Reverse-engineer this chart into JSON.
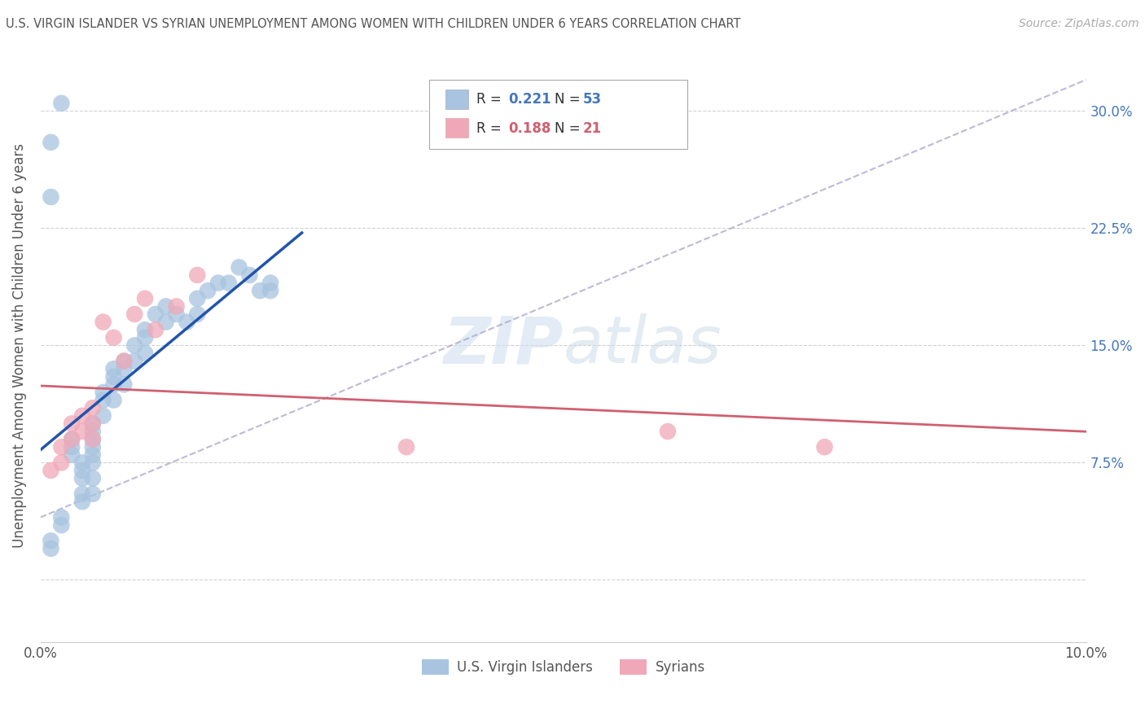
{
  "title": "U.S. VIRGIN ISLANDER VS SYRIAN UNEMPLOYMENT AMONG WOMEN WITH CHILDREN UNDER 6 YEARS CORRELATION CHART",
  "source": "Source: ZipAtlas.com",
  "ylabel": "Unemployment Among Women with Children Under 6 years",
  "xlim": [
    0.0,
    0.1
  ],
  "ylim": [
    -0.04,
    0.34
  ],
  "yticks": [
    0.0,
    0.075,
    0.15,
    0.225,
    0.3
  ],
  "ytick_labels": [
    "",
    "7.5%",
    "15.0%",
    "22.5%",
    "30.0%"
  ],
  "xticks": [
    0.0,
    0.025,
    0.05,
    0.075,
    0.1
  ],
  "xtick_labels": [
    "0.0%",
    "",
    "",
    "",
    "10.0%"
  ],
  "legend_label1": "U.S. Virgin Islanders",
  "legend_label2": "Syrians",
  "R1": 0.221,
  "N1": 53,
  "R2": 0.188,
  "N2": 21,
  "color_blue": "#a8c4e0",
  "color_pink": "#f0a8b8",
  "color_blue_line": "#2255aa",
  "color_pink_line": "#d06070",
  "color_dashed": "#aaaacc",
  "blue_points_x": [
    0.001,
    0.001,
    0.002,
    0.002,
    0.003,
    0.003,
    0.003,
    0.004,
    0.004,
    0.004,
    0.004,
    0.004,
    0.005,
    0.005,
    0.005,
    0.005,
    0.005,
    0.005,
    0.005,
    0.005,
    0.006,
    0.006,
    0.006,
    0.007,
    0.007,
    0.007,
    0.007,
    0.008,
    0.008,
    0.008,
    0.009,
    0.009,
    0.01,
    0.01,
    0.01,
    0.011,
    0.012,
    0.012,
    0.013,
    0.014,
    0.015,
    0.015,
    0.016,
    0.017,
    0.018,
    0.019,
    0.02,
    0.021,
    0.022,
    0.022,
    0.001,
    0.001,
    0.002
  ],
  "blue_points_y": [
    0.025,
    0.02,
    0.04,
    0.035,
    0.09,
    0.085,
    0.08,
    0.075,
    0.07,
    0.065,
    0.055,
    0.05,
    0.1,
    0.095,
    0.09,
    0.085,
    0.08,
    0.075,
    0.065,
    0.055,
    0.12,
    0.115,
    0.105,
    0.135,
    0.13,
    0.125,
    0.115,
    0.14,
    0.135,
    0.125,
    0.15,
    0.14,
    0.16,
    0.155,
    0.145,
    0.17,
    0.175,
    0.165,
    0.17,
    0.165,
    0.18,
    0.17,
    0.185,
    0.19,
    0.19,
    0.2,
    0.195,
    0.185,
    0.19,
    0.185,
    0.245,
    0.28,
    0.305
  ],
  "pink_points_x": [
    0.001,
    0.002,
    0.002,
    0.003,
    0.003,
    0.004,
    0.004,
    0.005,
    0.005,
    0.005,
    0.006,
    0.007,
    0.008,
    0.009,
    0.01,
    0.011,
    0.013,
    0.015,
    0.035,
    0.06,
    0.075
  ],
  "pink_points_y": [
    0.07,
    0.085,
    0.075,
    0.1,
    0.09,
    0.105,
    0.095,
    0.11,
    0.1,
    0.09,
    0.165,
    0.155,
    0.14,
    0.17,
    0.18,
    0.16,
    0.175,
    0.195,
    0.085,
    0.095,
    0.085
  ],
  "watermark_zip": "ZIP",
  "watermark_atlas": "atlas",
  "background_color": "#ffffff",
  "grid_color": "#cccccc"
}
